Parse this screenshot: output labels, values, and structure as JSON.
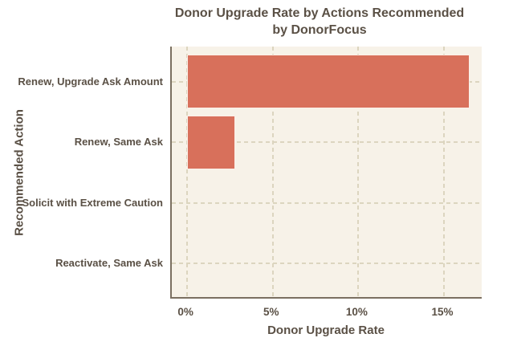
{
  "chart_data": {
    "type": "bar",
    "orientation": "horizontal",
    "title_lines": [
      "Donor Upgrade Rate by Actions Recommended",
      "by DonorFocus"
    ],
    "xlabel": "Donor Upgrade Rate",
    "ylabel": "Recommended Action",
    "categories": [
      "Renew, Upgrade Ask Amount",
      "Renew, Same Ask",
      "Solicit with Extreme Caution",
      "Reactivate, Same Ask"
    ],
    "values": [
      16.5,
      2.8,
      0,
      0
    ],
    "value_unit": "percent",
    "x_ticks": [
      {
        "value": 0,
        "label": "0%"
      },
      {
        "value": 5,
        "label": "5%"
      },
      {
        "value": 10,
        "label": "10%"
      },
      {
        "value": 15,
        "label": "15%"
      }
    ],
    "xlim": [
      -0.9,
      17.3
    ],
    "grid": {
      "style": "dashed",
      "axis": "both"
    },
    "colors": {
      "bar": "#d8705b",
      "bar_edge": "#fffcf6",
      "plot_background": "#f7f2e8",
      "figure_background": "#ffffff",
      "grid": "#dcd5bf",
      "spine": "#7b7061",
      "text": "#5a5045"
    }
  }
}
